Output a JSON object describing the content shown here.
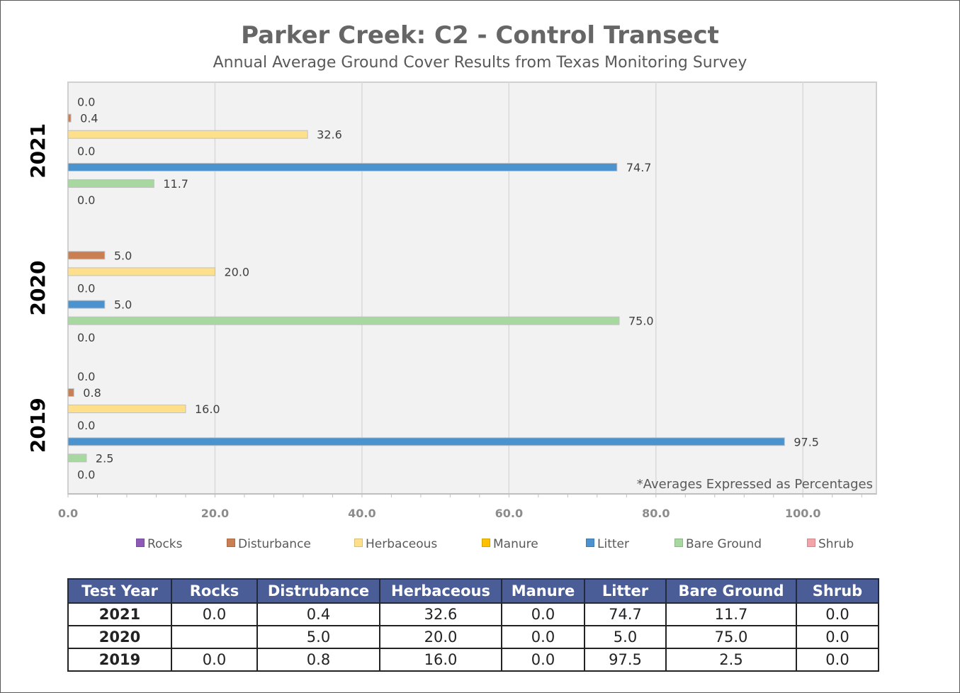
{
  "chart_data": {
    "type": "bar",
    "orientation": "horizontal",
    "title": "Parker Creek: C2 - Control Transect",
    "subtitle": "Annual Average Ground Cover Results from Texas Monitoring Survey",
    "annotation": "*Averages Expressed as Percentages",
    "xlim": [
      0,
      110
    ],
    "x_ticks": [
      "0.0",
      "20.0",
      "40.0",
      "60.0",
      "80.0",
      "100.0"
    ],
    "x_tick_values": [
      0,
      20,
      40,
      60,
      80,
      100
    ],
    "grid": true,
    "legend_position": "bottom",
    "categories": [
      "2021",
      "2020",
      "2019"
    ],
    "series": [
      {
        "name": "Rocks",
        "color": "#8e5ab7",
        "values": [
          0.0,
          null,
          0.0
        ],
        "labels": [
          "0.0",
          "",
          "0.0"
        ]
      },
      {
        "name": "Disturbance",
        "color": "#c97f52",
        "values": [
          0.4,
          5.0,
          0.8
        ],
        "labels": [
          "0.4",
          "5.0",
          "0.8"
        ]
      },
      {
        "name": "Herbaceous",
        "color": "#ffe08a",
        "values": [
          32.6,
          20.0,
          16.0
        ],
        "labels": [
          "32.6",
          "20.0",
          "16.0"
        ]
      },
      {
        "name": "Manure",
        "color": "#ffc000",
        "values": [
          0.0,
          0.0,
          0.0
        ],
        "labels": [
          "0.0",
          "0.0",
          "0.0"
        ]
      },
      {
        "name": "Litter",
        "color": "#4b93cf",
        "values": [
          74.7,
          5.0,
          97.5
        ],
        "labels": [
          "74.7",
          "5.0",
          "97.5"
        ]
      },
      {
        "name": "Bare Ground",
        "color": "#a6d8a0",
        "values": [
          11.7,
          75.0,
          2.5
        ],
        "labels": [
          "11.7",
          "75.0",
          "2.5"
        ]
      },
      {
        "name": "Shrub",
        "color": "#f4a3a8",
        "values": [
          0.0,
          0.0,
          0.0
        ],
        "labels": [
          "0.0",
          "0.0",
          "0.0"
        ]
      }
    ]
  },
  "table": {
    "headers": [
      "Test Year",
      "Rocks",
      "Distrubance",
      "Herbaceous",
      "Manure",
      "Litter",
      "Bare Ground",
      "Shrub"
    ],
    "rows": [
      [
        "2021",
        "0.0",
        "0.4",
        "32.6",
        "0.0",
        "74.7",
        "11.7",
        "0.0"
      ],
      [
        "2020",
        "",
        "5.0",
        "20.0",
        "0.0",
        "5.0",
        "75.0",
        "0.0"
      ],
      [
        "2019",
        "0.0",
        "0.8",
        "16.0",
        "0.0",
        "97.5",
        "2.5",
        "0.0"
      ]
    ]
  }
}
